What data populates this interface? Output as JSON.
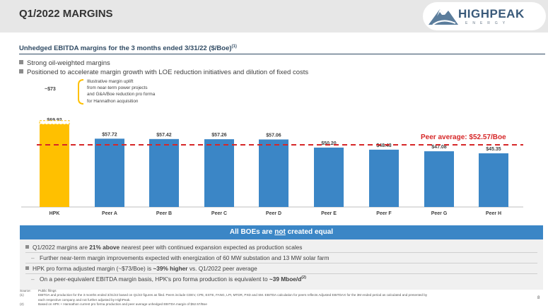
{
  "header": {
    "title": "Q1/2022 MARGINS",
    "logo": {
      "word": "HIGHPEAK",
      "sub": "ENERGY",
      "icon": "mountain-logo-icon",
      "color": "#3a5a7a"
    }
  },
  "subtitle": {
    "text": "Unhedged EBITDA margins for the 3 months ended 3/31/22 ($/Boe)",
    "note": "(1)"
  },
  "bullets": [
    "Strong oil-weighted margins",
    "Positioned to accelerate margin growth with LOE reduction initiatives and dilution of fixed costs"
  ],
  "annotation": {
    "approx": "~$73",
    "lines": [
      "Illustrative margin uplift",
      "from near-term power projects",
      "and G&A/Boe reduction pro forma",
      "for Hannathon acquisition"
    ]
  },
  "chart_data": {
    "type": "bar",
    "categories": [
      "HPK",
      "Peer A",
      "Peer B",
      "Peer C",
      "Peer D",
      "Peer E",
      "Peer F",
      "Peer G",
      "Peer H"
    ],
    "values": [
      69.92,
      57.72,
      57.42,
      57.26,
      57.06,
      50.2,
      48.43,
      47.08,
      45.35
    ],
    "data_labels": [
      "$69.92",
      "$57.72",
      "$57.42",
      "$57.26",
      "$57.06",
      "$50.20",
      "$48.43",
      "$47.08",
      "$45.35"
    ],
    "pro_forma_value": 73,
    "reference_line": {
      "label": "Peer average: $52.57/Boe",
      "value": 52.57,
      "color": "#d62728"
    },
    "colors": {
      "hpk": "#ffc000",
      "peer": "#3b86c6"
    },
    "ylim": [
      0,
      80
    ],
    "grid": false,
    "legend": "none"
  },
  "panel": {
    "header": {
      "before": "All BOEs are ",
      "underlined": "not",
      "after": " created equal"
    },
    "lines": [
      {
        "type": "bullet",
        "parts": [
          {
            "t": "Q1/2022 margins are ",
            "b": false
          },
          {
            "t": "21% above",
            "b": true
          },
          {
            "t": " nearest peer with continued expansion expected as production scales",
            "b": false
          }
        ]
      },
      {
        "type": "dash",
        "parts": [
          {
            "t": "Further near-term margin improvements expected with energization of 60 MW substation and 13 MW solar farm",
            "b": false
          }
        ]
      },
      {
        "type": "bullet",
        "parts": [
          {
            "t": "HPK pro forma adjusted margin (~$73/Boe) is ",
            "b": false
          },
          {
            "t": "~39% higher",
            "b": true
          },
          {
            "t": " vs. Q1/2022 peer average",
            "b": false
          }
        ]
      },
      {
        "type": "dash",
        "parts": [
          {
            "t": "On a peer-equivalent EBITDA margin basis, HPK's pro forma production is equivalent to ",
            "b": false
          },
          {
            "t": "~39 Mboe/d",
            "b": true
          },
          {
            "t": "(2)",
            "b": true,
            "sup": true
          }
        ]
      }
    ]
  },
  "footnotes": [
    {
      "num": "Source:",
      "text": "Public filings"
    },
    {
      "num": "(1)",
      "text": "EBITDA and production for the 3 months ended 3/31/22 based on Q1/22 figures as filed. Peers include CDEV, CPE, ESTE, FANG, LPI, MTDR, PXD and SM. EBITDA calculation for peers reflects Adjusted EBITDAX for the 3M ended period as calculated and presented by"
    },
    {
      "num": "",
      "text": "each respective company and not further adjusted by HighPeak."
    },
    {
      "num": "(2)",
      "text": "Based on HPK + Hannathon current pro forma production and peer average unhedged EBITDA margin of $52.57/Boe"
    }
  ],
  "page_number": "8"
}
